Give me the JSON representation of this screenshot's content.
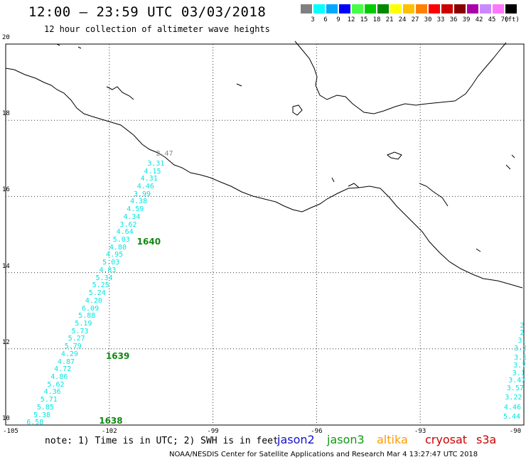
{
  "header": {
    "title": "12:00 – 23:59 UTC 03/03/2018",
    "subtitle": "12 hour collection of altimeter wave heights"
  },
  "legend": {
    "unit": "(ft)",
    "items": [
      {
        "label": "3",
        "color": "#808080"
      },
      {
        "label": "6",
        "color": "#00ffff"
      },
      {
        "label": "9",
        "color": "#00a8ff"
      },
      {
        "label": "12",
        "color": "#0000ff"
      },
      {
        "label": "15",
        "color": "#44ff44"
      },
      {
        "label": "18",
        "color": "#00cc00"
      },
      {
        "label": "21",
        "color": "#008800"
      },
      {
        "label": "24",
        "color": "#ffff00"
      },
      {
        "label": "27",
        "color": "#ffc000"
      },
      {
        "label": "30",
        "color": "#ff8000"
      },
      {
        "label": "33",
        "color": "#ff0000"
      },
      {
        "label": "36",
        "color": "#cc0000"
      },
      {
        "label": "39",
        "color": "#880000"
      },
      {
        "label": "42",
        "color": "#aa00aa"
      },
      {
        "label": "45",
        "color": "#cc88ff"
      },
      {
        "label": "70",
        "color": "#ff77ff"
      },
      {
        "label": "",
        "color": "#000000"
      }
    ]
  },
  "axes": {
    "lat_labels": [
      "20",
      "18",
      "16",
      "14",
      "12",
      "10"
    ],
    "lon_labels": [
      "-105",
      "-102",
      "-99",
      "-96",
      "-93",
      "-90"
    ],
    "lat_range": [
      10,
      20
    ],
    "lon_range": [
      -105,
      -90
    ]
  },
  "tracks": [
    {
      "pass": "1638",
      "pass_lat": 10.1,
      "pass_lon": -102.3,
      "points": [
        {
          "v": "2.47",
          "lat": 17.1,
          "lon": -100.4,
          "gray": true
        },
        {
          "v": "3.31",
          "lat": 16.85,
          "lon": -100.65
        },
        {
          "v": "4.15",
          "lat": 16.65,
          "lon": -100.75
        },
        {
          "v": "4.31",
          "lat": 16.45,
          "lon": -100.85
        },
        {
          "v": "4.46",
          "lat": 16.25,
          "lon": -100.95
        },
        {
          "v": "3.99",
          "lat": 16.05,
          "lon": -101.05
        },
        {
          "v": "4.38",
          "lat": 15.85,
          "lon": -101.15
        },
        {
          "v": "4.59",
          "lat": 15.65,
          "lon": -101.25
        },
        {
          "v": "4.34",
          "lat": 15.45,
          "lon": -101.35
        },
        {
          "v": "3.62",
          "lat": 15.25,
          "lon": -101.45
        },
        {
          "v": "4.64",
          "lat": 15.05,
          "lon": -101.55
        },
        {
          "v": "5.03",
          "lat": 14.85,
          "lon": -101.65
        },
        {
          "v": "4.80",
          "lat": 14.65,
          "lon": -101.75
        },
        {
          "v": "4.95",
          "lat": 14.45,
          "lon": -101.85
        },
        {
          "v": "5.03",
          "lat": 14.25,
          "lon": -101.95
        },
        {
          "v": "4.83",
          "lat": 14.05,
          "lon": -102.05
        },
        {
          "v": "5.34",
          "lat": 13.85,
          "lon": -102.15
        },
        {
          "v": "5.25",
          "lat": 13.65,
          "lon": -102.25
        },
        {
          "v": "5.24",
          "lat": 13.45,
          "lon": -102.35
        },
        {
          "v": "4.20",
          "lat": 13.25,
          "lon": -102.45
        },
        {
          "v": "6.09",
          "lat": 13.05,
          "lon": -102.55
        },
        {
          "v": "5.88",
          "lat": 12.85,
          "lon": -102.65
        },
        {
          "v": "5.19",
          "lat": 12.65,
          "lon": -102.75
        },
        {
          "v": "5.73",
          "lat": 12.45,
          "lon": -102.85
        },
        {
          "v": "5.27",
          "lat": 12.25,
          "lon": -102.95
        },
        {
          "v": "5.79",
          "lat": 12.05,
          "lon": -103.05
        },
        {
          "v": "4.29",
          "lat": 11.85,
          "lon": -103.15
        },
        {
          "v": "4.87",
          "lat": 11.65,
          "lon": -103.25
        },
        {
          "v": "4.72",
          "lat": 11.45,
          "lon": -103.35
        },
        {
          "v": "4.86",
          "lat": 11.25,
          "lon": -103.45
        },
        {
          "v": "5.62",
          "lat": 11.05,
          "lon": -103.55
        },
        {
          "v": "4.36",
          "lat": 10.85,
          "lon": -103.65
        },
        {
          "v": "5.71",
          "lat": 10.65,
          "lon": -103.75
        },
        {
          "v": "5.85",
          "lat": 10.45,
          "lon": -103.85
        },
        {
          "v": "5.38",
          "lat": 10.25,
          "lon": -103.95
        },
        {
          "v": "6.58",
          "lat": 10.05,
          "lon": -104.15
        }
      ]
    },
    {
      "pass": "1639",
      "pass_lat": 11.8,
      "pass_lon": -102.1,
      "points": []
    },
    {
      "pass": "1640",
      "pass_lat": 14.8,
      "pass_lon": -101.2,
      "points": []
    },
    {
      "pass": "",
      "pass_lat": null,
      "pass_lon": null,
      "points": [
        {
          "v": "2",
          "lat": 12.6,
          "lon": -90.05
        },
        {
          "v": "2",
          "lat": 12.4,
          "lon": -90.05
        },
        {
          "v": "3.",
          "lat": 12.2,
          "lon": -90.05
        },
        {
          "v": "3.0",
          "lat": 12.0,
          "lon": -90.1
        },
        {
          "v": "3.6",
          "lat": 11.75,
          "lon": -90.1
        },
        {
          "v": "3.7",
          "lat": 11.55,
          "lon": -90.12
        },
        {
          "v": "3.1",
          "lat": 11.35,
          "lon": -90.15
        },
        {
          "v": "3.47",
          "lat": 11.15,
          "lon": -90.2
        },
        {
          "v": "3.57",
          "lat": 10.95,
          "lon": -90.25
        },
        {
          "v": "3.22",
          "lat": 10.7,
          "lon": -90.3
        },
        {
          "v": "4.46",
          "lat": 10.45,
          "lon": -90.33
        },
        {
          "v": "5.44",
          "lat": 10.2,
          "lon": -90.35
        }
      ]
    }
  ],
  "note": "note: 1) Time is in UTC; 2) SWH is in feet",
  "satellites": [
    {
      "name": "jason2",
      "color": "#1111cc"
    },
    {
      "name": "jason3",
      "color": "#119911"
    },
    {
      "name": "altika",
      "color": "#ff9900"
    },
    {
      "name": "cryosat",
      "color": "#cc0000"
    },
    {
      "name": "s3a",
      "color": "#cc0000"
    }
  ],
  "footer": "NOAA/NESDIS Center for Satellite Applications and Research   Mar  4 13:27:47 UTC 2018"
}
